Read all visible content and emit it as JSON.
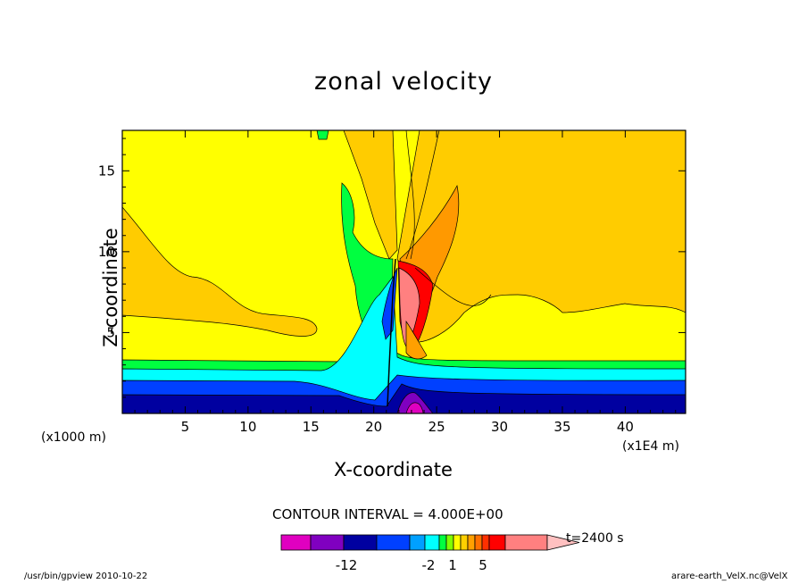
{
  "chart_data": {
    "type": "heatmap",
    "title": "zonal velocity",
    "xlabel": "X-coordinate",
    "ylabel": "Z-coordinate",
    "x_unit_label": "(x1E4 m)",
    "y_unit_label": "(x1000 m)",
    "x_ticks": [
      5,
      10,
      15,
      20,
      25,
      30,
      35,
      40
    ],
    "y_ticks": [
      5,
      10,
      15
    ],
    "xlim": [
      0,
      44.8
    ],
    "ylim": [
      0,
      17.5
    ],
    "contour_interval": "CONTOUR INTERVAL = 4.000E+00",
    "time_label": "t=2400 s",
    "colorbar": {
      "labels": [
        "-12",
        "-2",
        "1",
        "5"
      ],
      "colors": [
        "#e000c0",
        "#8000c0",
        "#0000a0",
        "#0040ff",
        "#00a0ff",
        "#00ffff",
        "#00ff40",
        "#80ff00",
        "#ffff00",
        "#ffd000",
        "#ffa000",
        "#ff7000",
        "#ff3000",
        "#ff0000",
        "#ff8080",
        "#ffc0c0"
      ]
    },
    "bands": [
      {
        "name": "magenta",
        "color": "#e000c0"
      },
      {
        "name": "purple",
        "color": "#8000c0"
      },
      {
        "name": "navy",
        "color": "#0000a0"
      },
      {
        "name": "blue",
        "color": "#0040ff"
      },
      {
        "name": "cyan",
        "color": "#00ffff"
      },
      {
        "name": "green",
        "color": "#00ff40"
      },
      {
        "name": "yellow",
        "color": "#ffff00"
      },
      {
        "name": "gold",
        "color": "#ffcc00"
      },
      {
        "name": "orange",
        "color": "#ff9900"
      },
      {
        "name": "red",
        "color": "#ff0000"
      },
      {
        "name": "pink",
        "color": "#ff8080"
      }
    ]
  },
  "footer": {
    "left": "/usr/bin/gpview  2010-10-22",
    "right": "arare-earth_VelX.nc@VelX"
  }
}
